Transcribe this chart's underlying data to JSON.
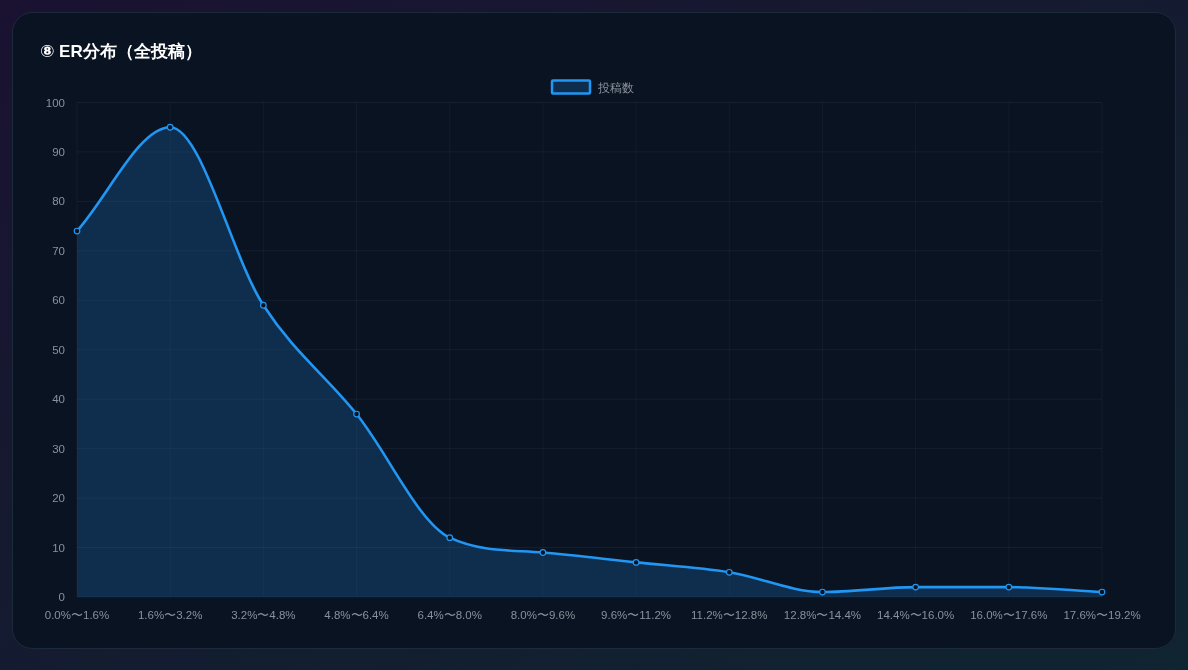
{
  "chart_data": {
    "type": "area",
    "title": "⑧ ER分布（全投稿）",
    "categories": [
      "0.0%〜1.6%",
      "1.6%〜3.2%",
      "3.2%〜4.8%",
      "4.8%〜6.4%",
      "6.4%〜8.0%",
      "8.0%〜9.6%",
      "9.6%〜11.2%",
      "11.2%〜12.8%",
      "12.8%〜14.4%",
      "14.4%〜16.0%",
      "16.0%〜17.6%",
      "17.6%〜19.2%"
    ],
    "series": [
      {
        "name": "投稿数",
        "color": "#2196f3",
        "values": [
          74,
          95,
          59,
          37,
          12,
          9,
          7,
          5,
          1,
          2,
          2,
          1
        ]
      }
    ],
    "ylim": [
      0,
      100
    ],
    "yticks": [
      0,
      10,
      20,
      30,
      40,
      50,
      60,
      70,
      80,
      90,
      100
    ],
    "grid": true,
    "legend": "top",
    "marker": "circle",
    "line_style": "solid"
  }
}
